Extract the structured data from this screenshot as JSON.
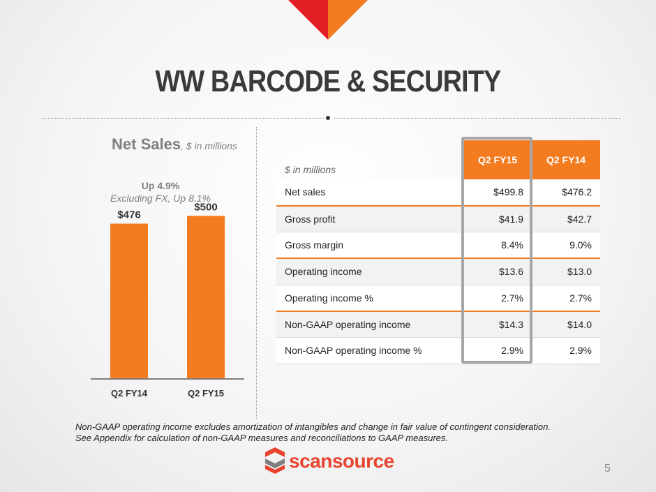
{
  "slide": {
    "title": "WW BARCODE & SECURITY",
    "page_number": "5"
  },
  "chart_heading": {
    "title": "Net Sales",
    "units": ", $ in millions",
    "note_line1": "Up 4.9%",
    "note_line2": "Excluding FX, Up 8.1%"
  },
  "chart_data": {
    "type": "bar",
    "categories": [
      "Q2 FY14",
      "Q2 FY15"
    ],
    "values": [
      476,
      500
    ],
    "data_labels": [
      "$476",
      "$500"
    ],
    "ylim": [
      0,
      520
    ],
    "grid": false,
    "legend": "none",
    "colors": {
      "bar": "#F47C20",
      "axis": "#7F7F7F"
    }
  },
  "table": {
    "units": "$ in millions",
    "columns": [
      "Q2 FY15",
      "Q2 FY14"
    ],
    "rows": [
      {
        "label": "Net sales",
        "q2fy15": "$499.8",
        "q2fy14": "$476.2"
      },
      {
        "label": "Gross profit",
        "q2fy15": "$41.9",
        "q2fy14": "$42.7"
      },
      {
        "label": "Gross margin",
        "q2fy15": "8.4%",
        "q2fy14": "9.0%"
      },
      {
        "label": "Operating income",
        "q2fy15": "$13.6",
        "q2fy14": "$13.0"
      },
      {
        "label": "Operating income %",
        "q2fy15": "2.7%",
        "q2fy14": "2.7%"
      },
      {
        "label": "Non-GAAP operating income",
        "q2fy15": "$14.3",
        "q2fy14": "$14.0"
      },
      {
        "label": "Non-GAAP operating income %",
        "q2fy15": "2.9%",
        "q2fy14": "2.9%"
      }
    ]
  },
  "footnote": {
    "line1": "Non-GAAP operating income excludes amortization of intangibles and change in fair value of contingent consideration.",
    "line2": "See Appendix for calculation of non-GAAP measures and reconciliations to GAAP measures."
  },
  "logo": {
    "text": "scansource",
    "icon": "scansource-s-icon",
    "colors": {
      "text": "#E8432E",
      "mark_red": "#E8432E",
      "mark_gray": "#7F7F7F"
    }
  },
  "colors": {
    "accent": "#F47C20",
    "accent_red": "#E31E24",
    "title": "#3A3A3A"
  }
}
